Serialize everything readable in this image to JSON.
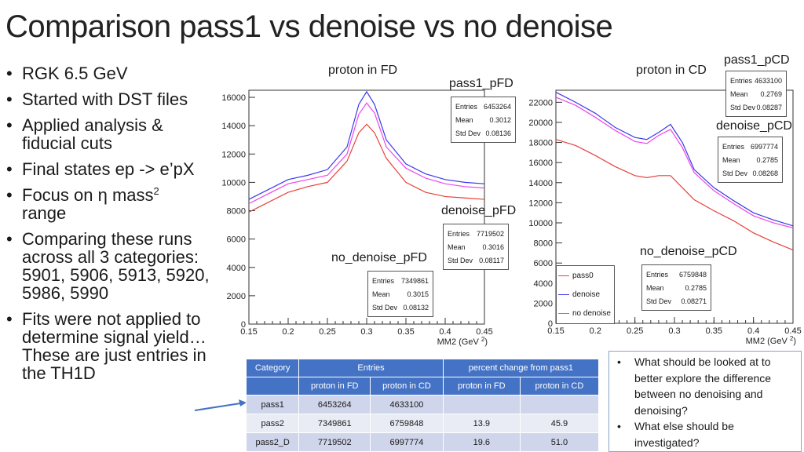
{
  "title": "Comparison pass1 vs denoise vs no denoise",
  "bullets": [
    "RGK 6.5 GeV",
    "Started with DST files",
    "Applied analysis & fiducial cuts",
    "Final states ep -> e’pX",
    "Focus on η mass",
    "range",
    "Comparing these runs across all 3 categories: 5901, 5906, 5913, 5920, 5986, 5990",
    "Fits were not applied to determine signal yield… These are just entries in the TH1D"
  ],
  "bullet_sup": "2",
  "colors": {
    "pass0": "#e8403a",
    "denoise": "#3a3ae8",
    "no_denoise": "#ee44ee",
    "table_header": "#4472c4"
  },
  "chart_data": [
    {
      "type": "line",
      "title": "proton in FD",
      "xlabel": "MM2 (GeV",
      "xlabel_sup": "2",
      "xlabel_end": ")",
      "xlim": [
        0.15,
        0.45
      ],
      "ylim": [
        0,
        16500
      ],
      "xticks": [
        "0.15",
        "0.2",
        "0.25",
        "0.3",
        "0.35",
        "0.4",
        "0.45"
      ],
      "yticks": [
        "0",
        "2000",
        "4000",
        "6000",
        "8000",
        "10000",
        "12000",
        "14000",
        "16000"
      ],
      "x": [
        0.15,
        0.175,
        0.2,
        0.225,
        0.25,
        0.275,
        0.29,
        0.3,
        0.31,
        0.325,
        0.35,
        0.375,
        0.4,
        0.425,
        0.45
      ],
      "series": [
        {
          "key": "denoise",
          "values": [
            8800,
            9500,
            10200,
            10500,
            10900,
            12500,
            15500,
            16400,
            15500,
            13000,
            11300,
            10600,
            10200,
            10000,
            9900
          ]
        },
        {
          "key": "no_denoise",
          "values": [
            8500,
            9200,
            9900,
            10200,
            10500,
            12000,
            14800,
            15600,
            14900,
            12500,
            11000,
            10300,
            9900,
            9700,
            9600
          ]
        },
        {
          "key": "pass0",
          "values": [
            7900,
            8600,
            9300,
            9700,
            10000,
            11500,
            13500,
            14100,
            13500,
            11700,
            10000,
            9300,
            9000,
            8900,
            8800
          ]
        }
      ],
      "stats": [
        {
          "name": "pass1_pFD",
          "Entries": "6453264",
          "Mean": "0.3012",
          "Std Dev": "0.08136"
        },
        {
          "name": "denoise_pFD",
          "Entries": "7719502",
          "Mean": "0.3016",
          "Std Dev": "0.08117"
        },
        {
          "name": "no_denoise_pFD",
          "Entries": "7349861",
          "Mean": "0.3015",
          "Std Dev": "0.08132"
        }
      ]
    },
    {
      "type": "line",
      "title": "proton in CD",
      "xlabel": "MM2 (GeV",
      "xlabel_sup": "2",
      "xlabel_end": ")",
      "xlim": [
        0.15,
        0.45
      ],
      "ylim": [
        0,
        23200
      ],
      "xticks": [
        "0.15",
        "0.2",
        "0.25",
        "0.3",
        "0.35",
        "0.4",
        "0.45"
      ],
      "yticks": [
        "0",
        "2000",
        "4000",
        "6000",
        "8000",
        "10000",
        "12000",
        "14000",
        "16000",
        "18000",
        "20000",
        "22000"
      ],
      "x": [
        0.15,
        0.175,
        0.2,
        0.225,
        0.25,
        0.265,
        0.28,
        0.295,
        0.31,
        0.325,
        0.35,
        0.375,
        0.4,
        0.425,
        0.45
      ],
      "series": [
        {
          "key": "denoise",
          "values": [
            23000,
            22000,
            20900,
            19500,
            18500,
            18300,
            19000,
            19800,
            18000,
            15300,
            13500,
            12200,
            11000,
            10300,
            9700
          ]
        },
        {
          "key": "no_denoise",
          "values": [
            22500,
            21700,
            20500,
            19200,
            18100,
            17900,
            18700,
            19300,
            17500,
            15000,
            13200,
            11900,
            10700,
            10000,
            9500
          ]
        },
        {
          "key": "pass0",
          "values": [
            18300,
            17700,
            16700,
            15600,
            14700,
            14500,
            14700,
            14700,
            13500,
            12300,
            11200,
            10200,
            9000,
            8100,
            7300
          ]
        }
      ],
      "legend": [
        {
          "key": "pass0",
          "label": "pass0"
        },
        {
          "key": "denoise",
          "label": "denoise"
        },
        {
          "key": "no_denoise",
          "label": "no denoise"
        }
      ],
      "stats": [
        {
          "name": "pass1_pCD",
          "Entries": "4633100",
          "Mean": "0.2769",
          "Std Dev": "0.08287"
        },
        {
          "name": "denoise_pCD",
          "Entries": "6997774",
          "Mean": "0.2785",
          "Std Dev": "0.08268"
        },
        {
          "name": "no_denoise_pCD",
          "Entries": "6759848",
          "Mean": "0.2785",
          "Std Dev": "0.08271"
        }
      ]
    }
  ],
  "table": {
    "h1": [
      "Category",
      "Entries",
      "percent change from pass1"
    ],
    "h2": [
      "",
      "proton in FD",
      "proton in CD",
      "proton in FD",
      "proton in CD"
    ],
    "rows": [
      [
        "pass1",
        "6453264",
        "4633100",
        "",
        ""
      ],
      [
        "pass2",
        "7349861",
        "6759848",
        "13.9",
        "45.9"
      ],
      [
        "pass2_D",
        "7719502",
        "6997774",
        "19.6",
        "51.0"
      ]
    ]
  },
  "notes": [
    "What should be looked at to better explore the difference between no denoising and denoising?",
    "What else should be investigated?"
  ]
}
